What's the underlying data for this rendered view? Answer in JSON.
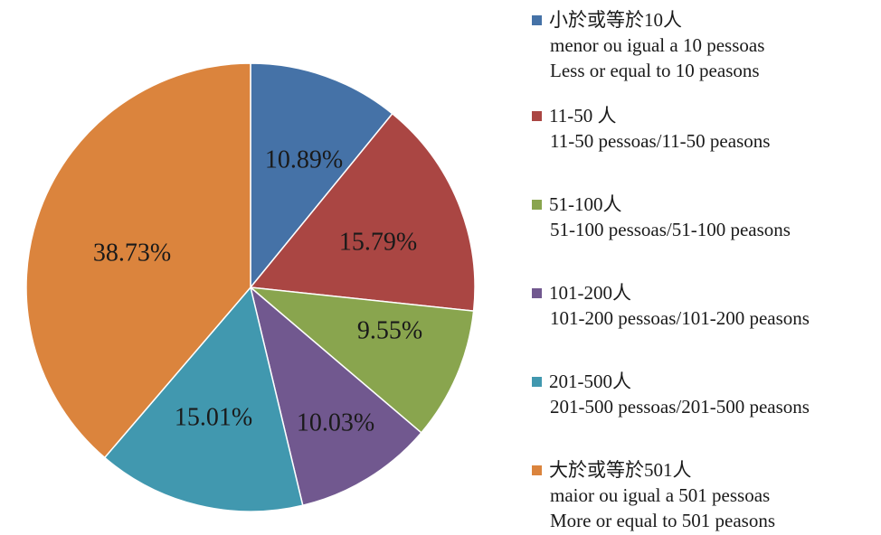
{
  "chart_data": {
    "type": "pie",
    "title": "",
    "start_angle_deg": 0,
    "direction": "clockwise",
    "slices": [
      {
        "value": 10.89,
        "label": "10.89%",
        "color": "#4572a7",
        "legend": [
          "小於或等於10人",
          "menor ou igual a 10 pessoas",
          "Less or equal to 10 peasons"
        ]
      },
      {
        "value": 15.79,
        "label": "15.79%",
        "color": "#aa4643",
        "legend": [
          "11-50 人",
          "11-50 pessoas/11-50 peasons"
        ]
      },
      {
        "value": 9.55,
        "label": "9.55%",
        "color": "#89a54e",
        "legend": [
          "51-100人",
          "51-100 pessoas/51-100 peasons"
        ]
      },
      {
        "value": 10.03,
        "label": "10.03%",
        "color": "#71588f",
        "legend": [
          "101-200人",
          "101-200 pessoas/101-200 peasons"
        ]
      },
      {
        "value": 15.01,
        "label": "15.01%",
        "color": "#4198af",
        "legend": [
          "201-500人",
          "201-500 pessoas/201-500 peasons"
        ]
      },
      {
        "value": 38.73,
        "label": "38.73%",
        "color": "#db843d",
        "legend": [
          "大於或等於501人",
          "maior ou igual a 501 pessoas",
          "More or equal to 501 peasons"
        ]
      }
    ],
    "legend_position": "right"
  }
}
